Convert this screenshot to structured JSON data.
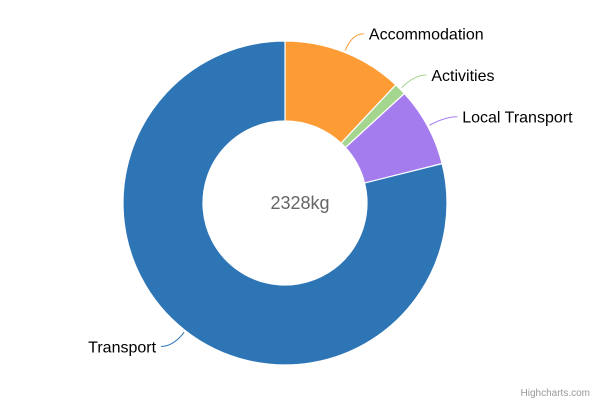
{
  "chart_data": {
    "type": "pie",
    "variant": "donut",
    "center_label": "2328kg",
    "categories": [
      "Accommodation",
      "Activities",
      "Local Transport",
      "Transport"
    ],
    "values": [
      279,
      28,
      184,
      1837
    ],
    "colors": [
      "#fd9b34",
      "#a5d68f",
      "#a57ced",
      "#2e75b6"
    ],
    "credits": "Highcharts.com"
  }
}
